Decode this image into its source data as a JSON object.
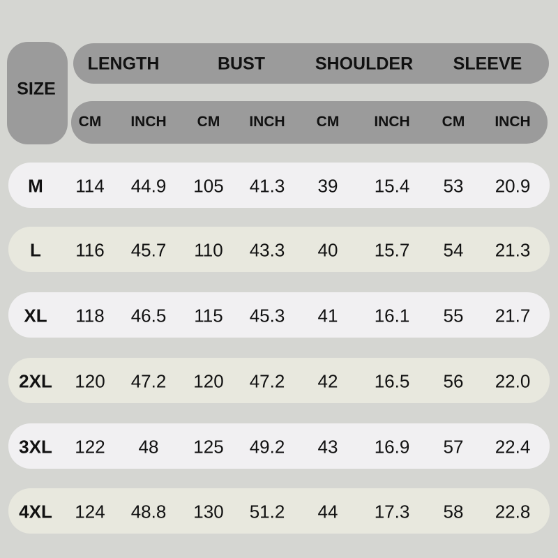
{
  "chart_data": {
    "type": "table",
    "size_header": "SIZE",
    "groups": [
      "LENGTH",
      "BUST",
      "SHOULDER",
      "SLEEVE"
    ],
    "units": [
      "CM",
      "INCH",
      "CM",
      "INCH",
      "CM",
      "INCH",
      "CM",
      "INCH"
    ],
    "rows": [
      [
        "M",
        "114",
        "44.9",
        "105",
        "41.3",
        "39",
        "15.4",
        "53",
        "20.9"
      ],
      [
        "L",
        "116",
        "45.7",
        "110",
        "43.3",
        "40",
        "15.7",
        "54",
        "21.3"
      ],
      [
        "XL",
        "118",
        "46.5",
        "115",
        "45.3",
        "41",
        "16.1",
        "55",
        "21.7"
      ],
      [
        "2XL",
        "120",
        "47.2",
        "120",
        "47.2",
        "42",
        "16.5",
        "56",
        "22.0"
      ],
      [
        "3XL",
        "122",
        "48",
        "125",
        "49.2",
        "43",
        "16.9",
        "57",
        "22.4"
      ],
      [
        "4XL",
        "124",
        "48.8",
        "130",
        "51.2",
        "44",
        "17.3",
        "58",
        "22.8"
      ]
    ]
  },
  "colors": {
    "background": "#d5d6d2",
    "header": "#9b9b9b",
    "row_light": "#f1f0f2",
    "row_cream": "#e8e8de"
  }
}
